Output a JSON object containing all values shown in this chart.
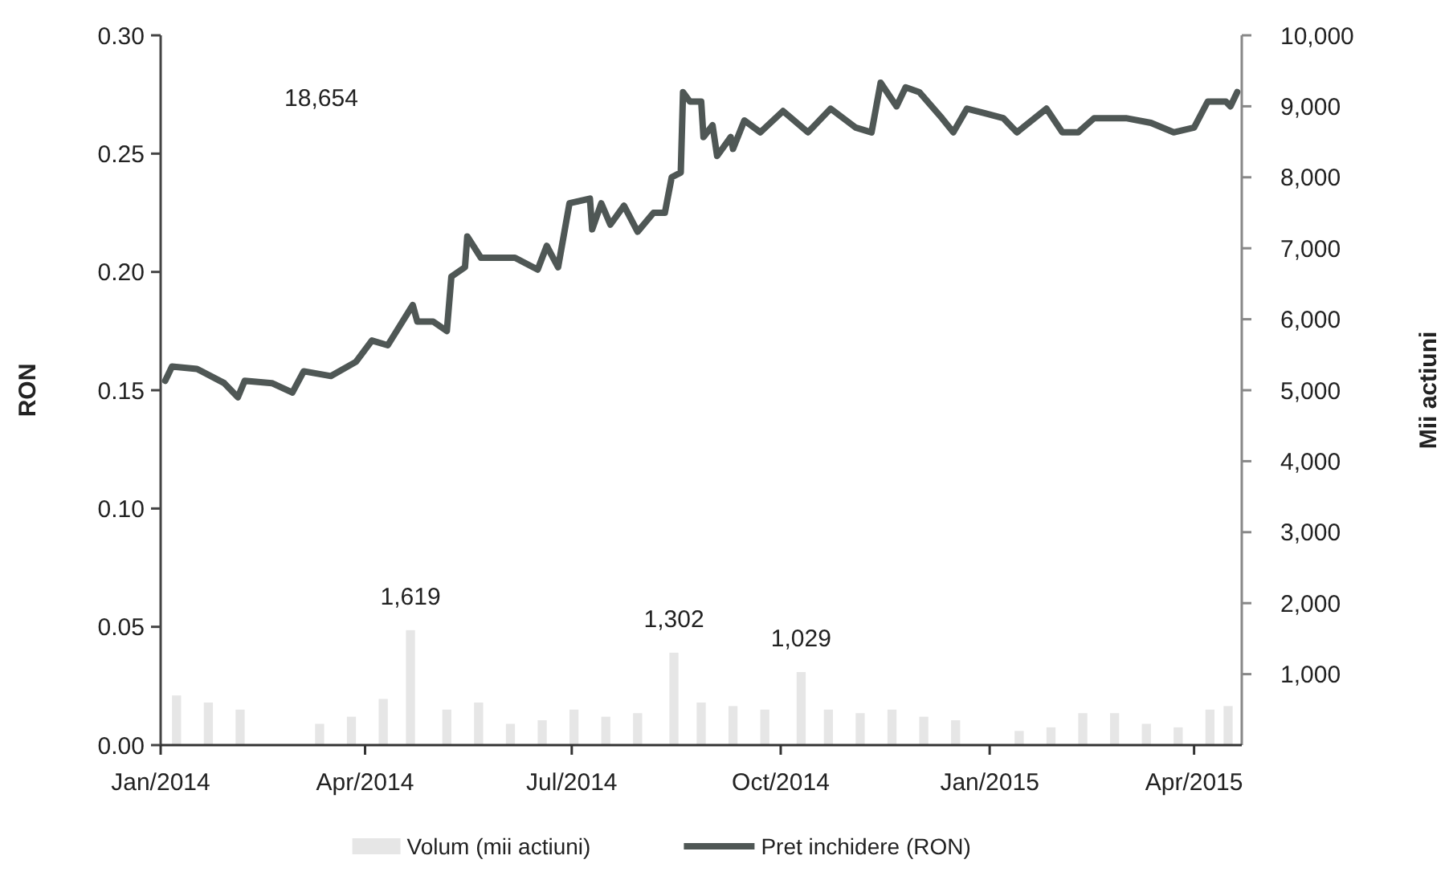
{
  "chart_data": {
    "type": "line",
    "ylabel": "RON",
    "y2label": "Mii actiuni",
    "legend": "bottom",
    "xlim": [
      "2014-01-01",
      "2015-04-22"
    ],
    "xticks": [
      {
        "value": "2014-01-01",
        "label": "Jan/2014"
      },
      {
        "value": "2014-04-01",
        "label": "Apr/2014"
      },
      {
        "value": "2014-07-01",
        "label": "Jul/2014"
      },
      {
        "value": "2014-10-01",
        "label": "Oct/2014"
      },
      {
        "value": "2015-01-01",
        "label": "Jan/2015"
      },
      {
        "value": "2015-04-01",
        "label": "Apr/2015"
      }
    ],
    "ylim": [
      0,
      0.3
    ],
    "yticks": [
      {
        "value": 0,
        "label": "0.00"
      },
      {
        "value": 0.05,
        "label": "0.05"
      },
      {
        "value": 0.1,
        "label": "0.10"
      },
      {
        "value": 0.15,
        "label": "0.15"
      },
      {
        "value": 0.2,
        "label": "0.20"
      },
      {
        "value": 0.25,
        "label": "0.25"
      },
      {
        "value": 0.3,
        "label": "0.30"
      }
    ],
    "y2lim": [
      0,
      10000
    ],
    "y2ticks": [
      {
        "value": 1000,
        "label": "1,000"
      },
      {
        "value": 2000,
        "label": "2,000"
      },
      {
        "value": 3000,
        "label": "3,000"
      },
      {
        "value": 4000,
        "label": "4,000"
      },
      {
        "value": 5000,
        "label": "5,000"
      },
      {
        "value": 6000,
        "label": "6,000"
      },
      {
        "value": 7000,
        "label": "7,000"
      },
      {
        "value": 8000,
        "label": "8,000"
      },
      {
        "value": 9000,
        "label": "9,000"
      },
      {
        "value": 10000,
        "label": "10,000"
      }
    ],
    "annotations": [
      "18,654"
    ],
    "series": [
      {
        "type": "bar",
        "name": "Volum (mii actiuni)",
        "color": "#e6e6e6",
        "axis": "y2",
        "x": [
          "2014-01-08",
          "2014-01-22",
          "2014-02-05",
          "2014-03-12",
          "2014-03-26",
          "2014-04-09",
          "2014-04-21",
          "2014-05-07",
          "2014-05-21",
          "2014-06-04",
          "2014-06-18",
          "2014-07-02",
          "2014-07-16",
          "2014-07-30",
          "2014-08-15",
          "2014-08-27",
          "2014-09-10",
          "2014-09-24",
          "2014-10-10",
          "2014-10-22",
          "2014-11-05",
          "2014-11-19",
          "2014-12-03",
          "2014-12-17",
          "2015-01-14",
          "2015-01-28",
          "2015-02-11",
          "2015-02-25",
          "2015-03-11",
          "2015-03-25",
          "2015-04-08",
          "2015-04-16"
        ],
        "values": [
          700,
          600,
          500,
          300,
          400,
          650,
          1619,
          500,
          600,
          300,
          350,
          500,
          400,
          450,
          1302,
          600,
          550,
          500,
          1029,
          500,
          450,
          500,
          400,
          350,
          200,
          250,
          450,
          450,
          300,
          250,
          500,
          550
        ],
        "value_labels": [
          null,
          null,
          null,
          null,
          null,
          null,
          "1,619",
          null,
          null,
          null,
          null,
          null,
          null,
          null,
          "1,302",
          null,
          null,
          null,
          "1,029",
          null,
          null,
          null,
          null,
          null,
          null,
          null,
          null,
          null,
          null,
          null,
          null,
          null
        ]
      },
      {
        "name": "Pret inchidere (RON)",
        "color": "#4f5755",
        "x": [
          "2014-01-03",
          "2014-01-06",
          "2014-01-17",
          "2014-01-29",
          "2014-02-04",
          "2014-02-07",
          "2014-02-19",
          "2014-02-28",
          "2014-03-05",
          "2014-03-17",
          "2014-03-28",
          "2014-04-04",
          "2014-04-11",
          "2014-04-22",
          "2014-04-24",
          "2014-05-01",
          "2014-05-07",
          "2014-05-09",
          "2014-05-15",
          "2014-05-16",
          "2014-05-22",
          "2014-06-06",
          "2014-06-16",
          "2014-06-20",
          "2014-06-25",
          "2014-06-30",
          "2014-07-09",
          "2014-07-10",
          "2014-07-14",
          "2014-07-18",
          "2014-07-24",
          "2014-07-30",
          "2014-08-06",
          "2014-08-11",
          "2014-08-14",
          "2014-08-18",
          "2014-08-19",
          "2014-08-22",
          "2014-08-27",
          "2014-08-28",
          "2014-09-01",
          "2014-09-03",
          "2014-09-09",
          "2014-09-10",
          "2014-09-15",
          "2014-09-22",
          "2014-10-02",
          "2014-10-13",
          "2014-10-23",
          "2014-11-03",
          "2014-11-10",
          "2014-11-14",
          "2014-11-21",
          "2014-11-25",
          "2014-12-01",
          "2014-12-11",
          "2014-12-16",
          "2014-12-22",
          "2014-12-30",
          "2015-01-07",
          "2015-01-13",
          "2015-01-26",
          "2015-02-02",
          "2015-02-09",
          "2015-02-16",
          "2015-03-02",
          "2015-03-13",
          "2015-03-23",
          "2015-04-01",
          "2015-04-07",
          "2015-04-15",
          "2015-04-17",
          "2015-04-20"
        ],
        "values": [
          0.154,
          0.16,
          0.159,
          0.153,
          0.147,
          0.154,
          0.153,
          0.149,
          0.158,
          0.156,
          0.162,
          0.171,
          0.169,
          0.186,
          0.179,
          0.179,
          0.175,
          0.198,
          0.202,
          0.215,
          0.206,
          0.206,
          0.201,
          0.211,
          0.202,
          0.229,
          0.231,
          0.218,
          0.229,
          0.22,
          0.228,
          0.217,
          0.225,
          0.225,
          0.24,
          0.242,
          0.276,
          0.272,
          0.272,
          0.257,
          0.262,
          0.249,
          0.257,
          0.252,
          0.264,
          0.259,
          0.268,
          0.259,
          0.269,
          0.261,
          0.259,
          0.28,
          0.27,
          0.278,
          0.276,
          0.265,
          0.259,
          0.269,
          0.267,
          0.265,
          0.259,
          0.269,
          0.259,
          0.259,
          0.265,
          0.265,
          0.263,
          0.259,
          0.261,
          0.272,
          0.272,
          0.27,
          0.276
        ]
      }
    ]
  }
}
